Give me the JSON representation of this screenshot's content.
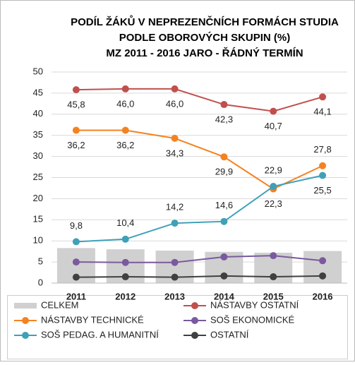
{
  "chart_data": {
    "type": "line",
    "title": [
      "PODÍL ŽÁKŮ V NEPREZENČNÍCH FORMÁCH STUDIA",
      "PODLE OBOROVÝCH SKUPIN (%)",
      "MZ 2011 - 2016 JARO - ŘÁDNÝ TERMÍN"
    ],
    "categories": [
      "2011",
      "2012",
      "2013",
      "2014",
      "2015",
      "2016"
    ],
    "ylim": [
      0,
      50
    ],
    "yticks": [
      0,
      5,
      10,
      15,
      20,
      25,
      30,
      35,
      40,
      45,
      50
    ],
    "grid": true,
    "legend": "bottom",
    "series": [
      {
        "name": "CELKEM",
        "type": "bar",
        "color": "#d0d0d0",
        "values": [
          8.3,
          8.0,
          7.7,
          7.4,
          7.2,
          7.6
        ]
      },
      {
        "name": "NÁSTAVBY OSTATNÍ",
        "type": "line",
        "color": "#c0504d",
        "values": [
          45.8,
          46.0,
          46.0,
          42.3,
          40.7,
          44.1
        ],
        "value_labels": [
          "45,8",
          "46,0",
          "46,0",
          "42,3",
          "40,7",
          "44,1"
        ]
      },
      {
        "name": "NÁSTAVBY TECHNICKÉ",
        "type": "line",
        "color": "#f58220",
        "values": [
          36.2,
          36.2,
          34.3,
          29.9,
          22.3,
          27.8
        ],
        "value_labels": [
          "36,2",
          "36,2",
          "34,3",
          "29,9",
          "22,3",
          "27,8"
        ]
      },
      {
        "name": "SOŠ EKONOMICKÉ",
        "type": "line",
        "color": "#7a5a9e",
        "values": [
          5.0,
          4.9,
          4.9,
          6.2,
          6.5,
          5.3
        ]
      },
      {
        "name": "SOŠ PEDAG. A HUMANITNÍ",
        "type": "line",
        "color": "#3fa0b8",
        "values": [
          9.8,
          10.4,
          14.2,
          14.6,
          22.9,
          25.5
        ],
        "value_labels": [
          "9,8",
          "10,4",
          "14,2",
          "14,6",
          "22,9",
          "25,5"
        ]
      },
      {
        "name": "OSTATNÍ",
        "type": "line",
        "color": "#404040",
        "values": [
          1.4,
          1.5,
          1.4,
          1.7,
          1.5,
          1.7
        ]
      }
    ]
  }
}
